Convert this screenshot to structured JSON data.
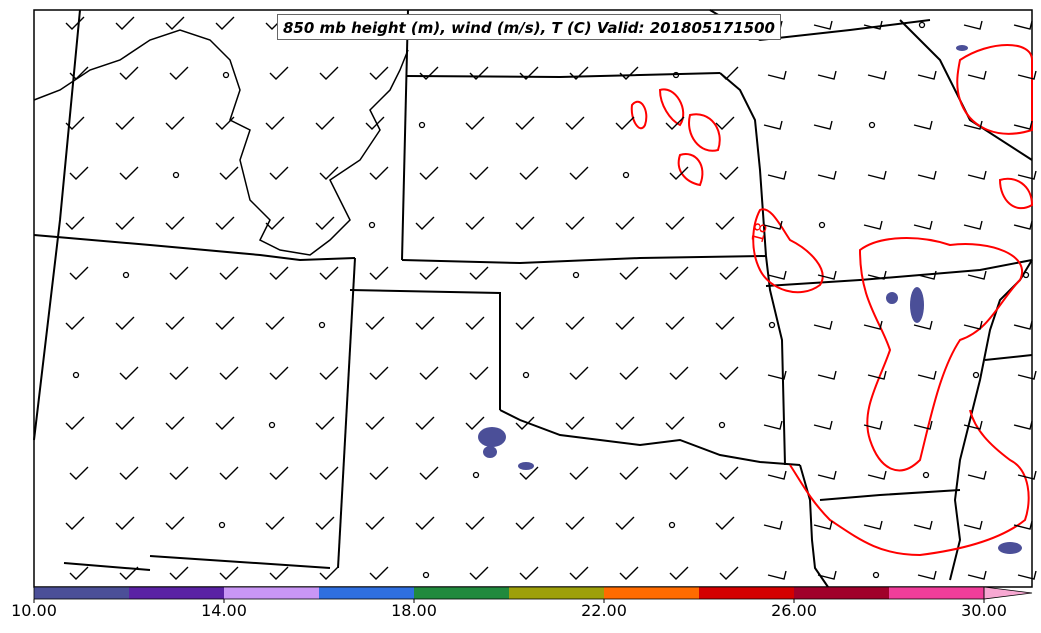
{
  "title": "850 mb height (m), wind (m/s), T (C) Valid: 201805171500",
  "contour_label": "18",
  "colorbar": {
    "ticks": [
      "10.00",
      "14.00",
      "18.00",
      "22.00",
      "26.00",
      "30.00"
    ],
    "colors": [
      "#4b4f98",
      "#5a22a4",
      "#c996f5",
      "#2f6fe0",
      "#218a3d",
      "#9ea00a",
      "#ff6b00",
      "#d40000",
      "#a0002a",
      "#f03d9a",
      "#f7a8d2"
    ]
  },
  "colors": {
    "isotherm": "#ff0000",
    "borders": "#000000",
    "shaded": "#4b4f98"
  }
}
